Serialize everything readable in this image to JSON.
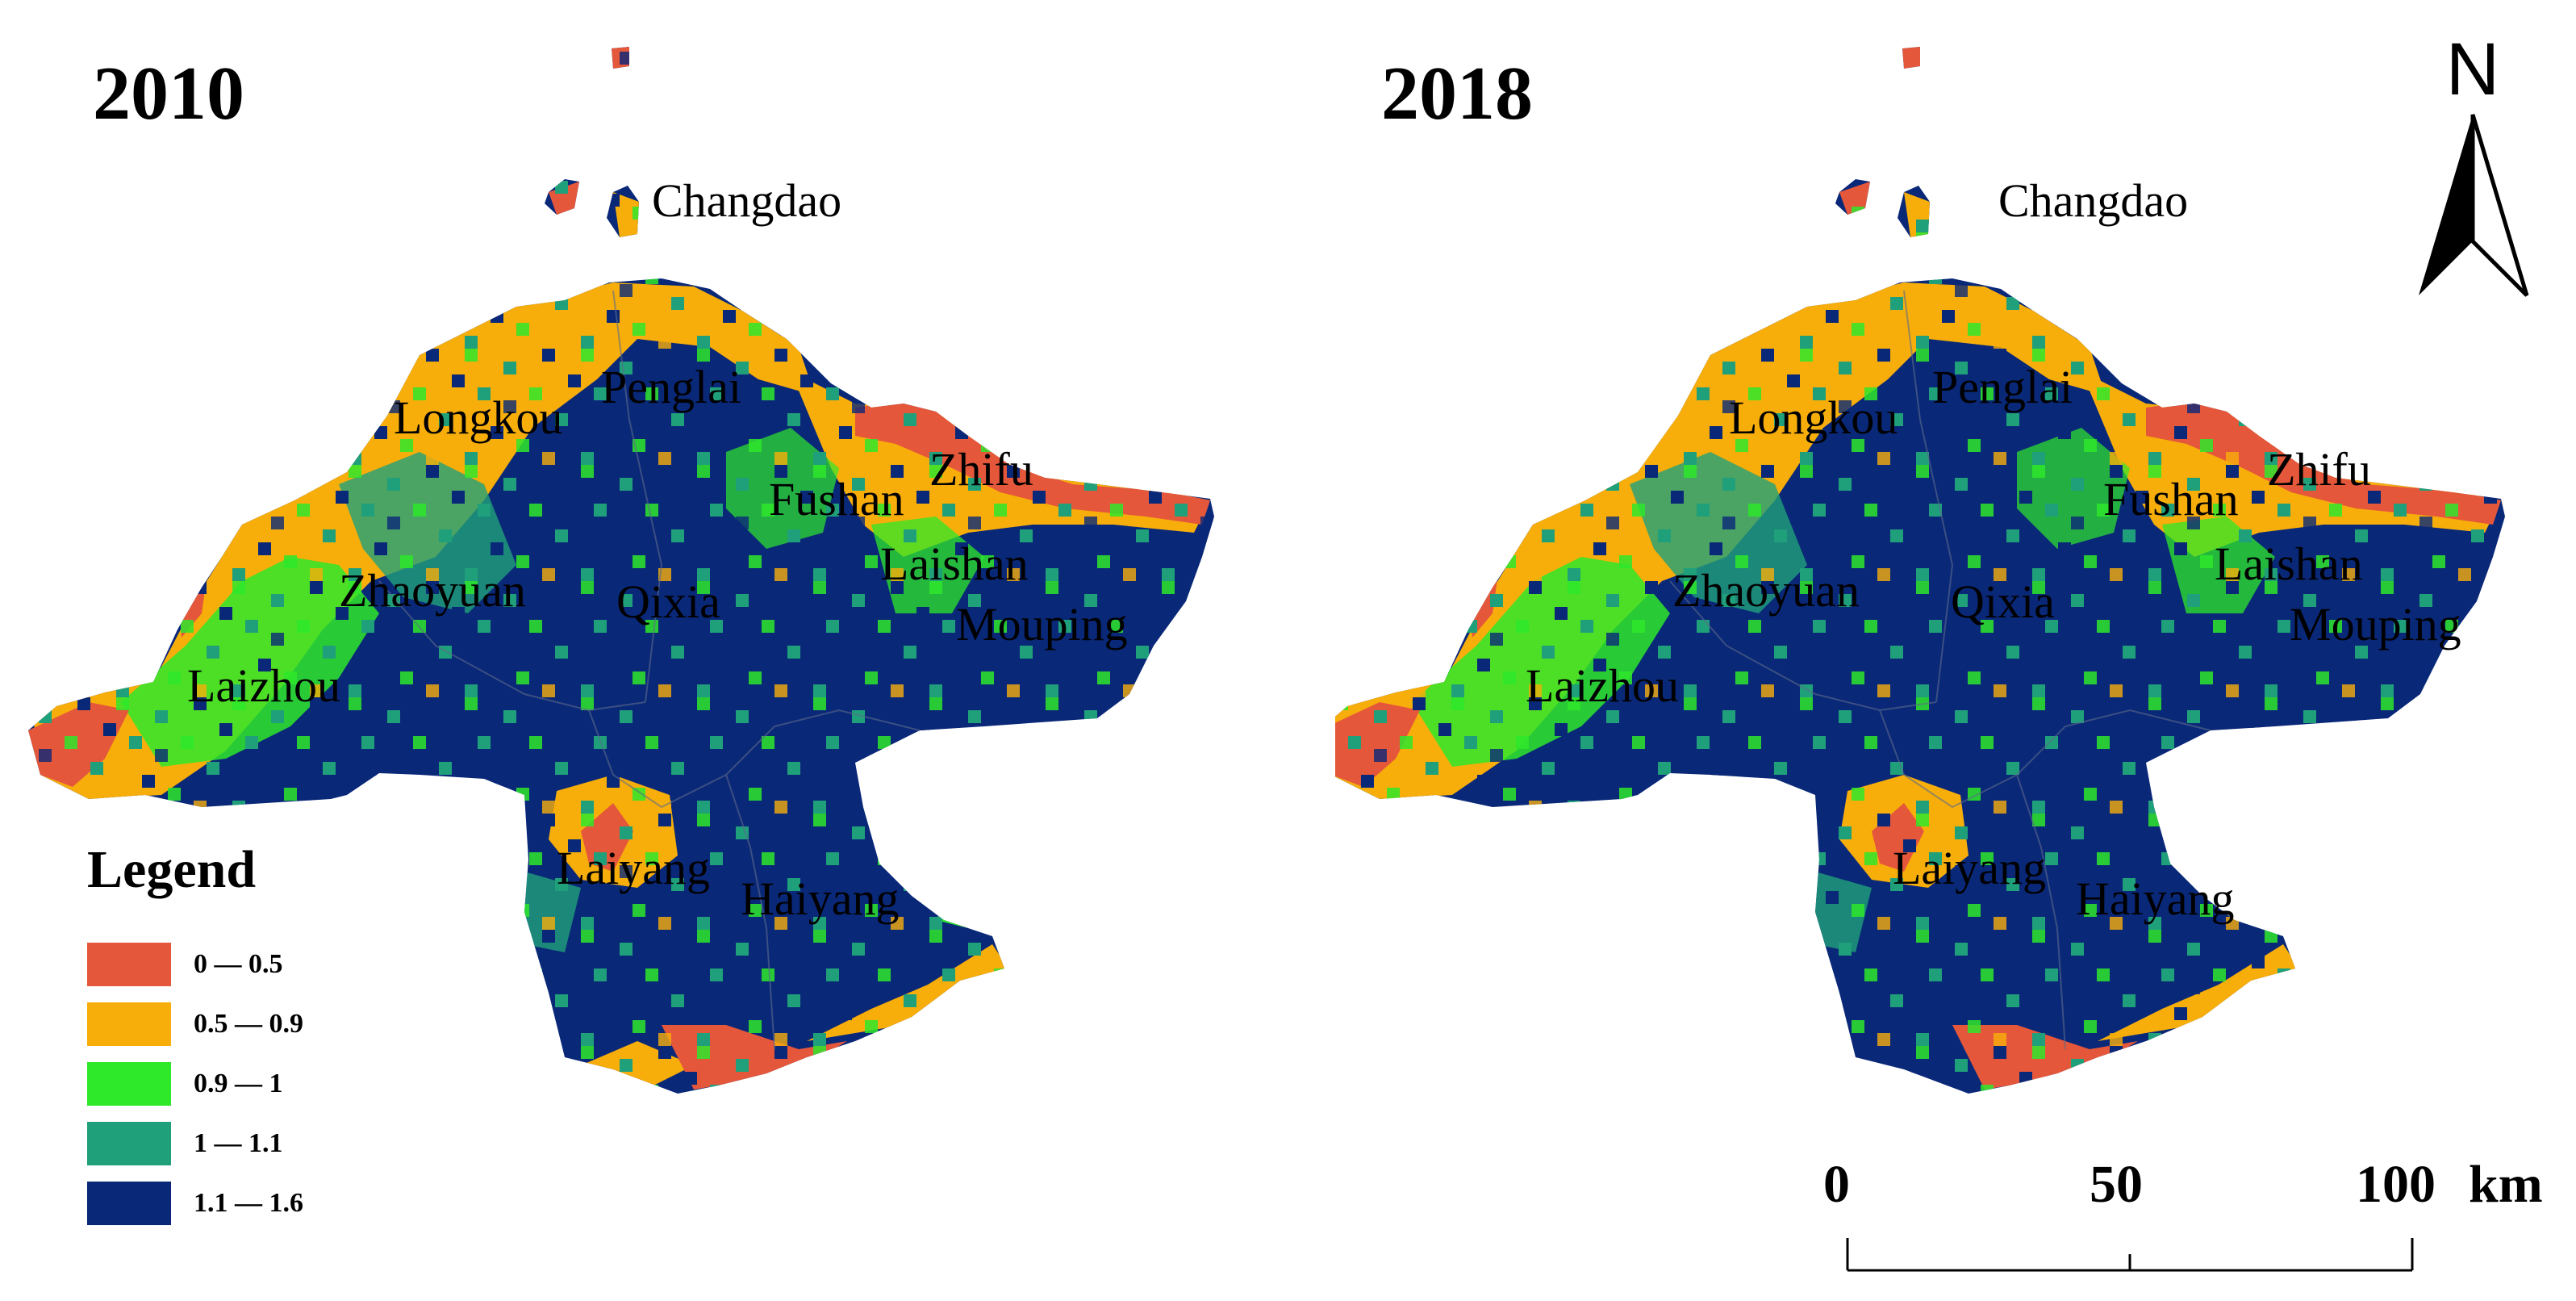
{
  "maps": [
    {
      "year": "2010",
      "places": {
        "changdao": "Changdao",
        "penglai": "Penglai",
        "longkou": "Longkou",
        "zhifu": "Zhifu",
        "fushan": "Fushan",
        "laishan": "Laishan",
        "zhaoyuan": "Zhaoyuan",
        "qixia": "Qixia",
        "mouping": "Mouping",
        "laizhou": "Laizhou",
        "laiyang": "Laiyang",
        "haiyang": "Haiyang"
      }
    },
    {
      "year": "2018",
      "places": {
        "changdao": "Changdao",
        "penglai": "Penglai",
        "longkou": "Longkou",
        "zhifu": "Zhifu",
        "fushan": "Fushan",
        "laishan": "Laishan",
        "zhaoyuan": "Zhaoyuan",
        "qixia": "Qixia",
        "mouping": "Mouping",
        "laizhou": "Laizhou",
        "laiyang": "Laiyang",
        "haiyang": "Haiyang"
      }
    }
  ],
  "legend": {
    "title": "Legend",
    "classes": [
      {
        "label": "0 — 0.5",
        "color": "#e5573a"
      },
      {
        "label": "0.5 — 0.9",
        "color": "#f7ae0a"
      },
      {
        "label": "0.9 — 1",
        "color": "#2ee82a"
      },
      {
        "label": "1 — 1.1",
        "color": "#1fa07a"
      },
      {
        "label": "1.1 — 1.6",
        "color": "#0a2878"
      }
    ]
  },
  "north_arrow": {
    "letter": "N",
    "icon": "north-arrow-icon"
  },
  "scale_bar": {
    "ticks": [
      "0",
      "50",
      "100"
    ],
    "unit": "km"
  }
}
